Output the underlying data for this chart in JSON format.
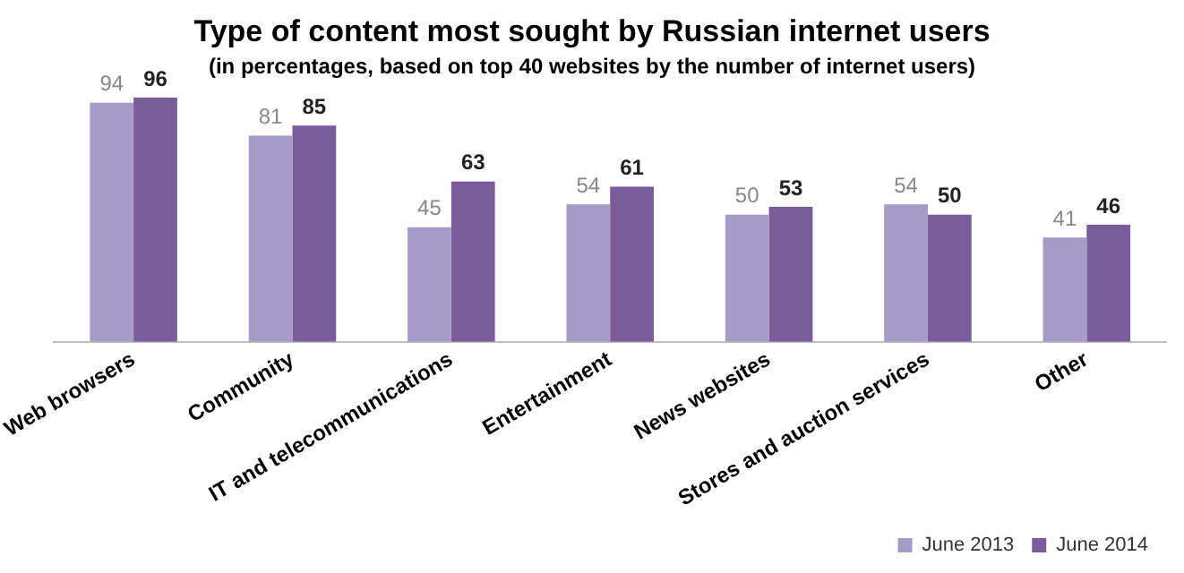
{
  "chart_data": {
    "type": "bar",
    "title": "Type of content most sought by Russian internet users",
    "subtitle": "(in percentages, based on top 40 websites by the number of internet users)",
    "categories": [
      "Web browsers",
      "Community",
      "IT and telecommunications",
      "Entertainment",
      "News websites",
      "Stores and auction services",
      "Other"
    ],
    "series": [
      {
        "name": "June 2013",
        "color": "#a69ac6",
        "values": [
          94,
          81,
          45,
          54,
          50,
          54,
          41
        ]
      },
      {
        "name": "June 2014",
        "color": "#7b5c9b",
        "values": [
          96,
          85,
          63,
          61,
          53,
          50,
          46
        ]
      }
    ],
    "tick_labels": "x",
    "data_labels": true,
    "grid": false,
    "legend": "bottom right"
  }
}
